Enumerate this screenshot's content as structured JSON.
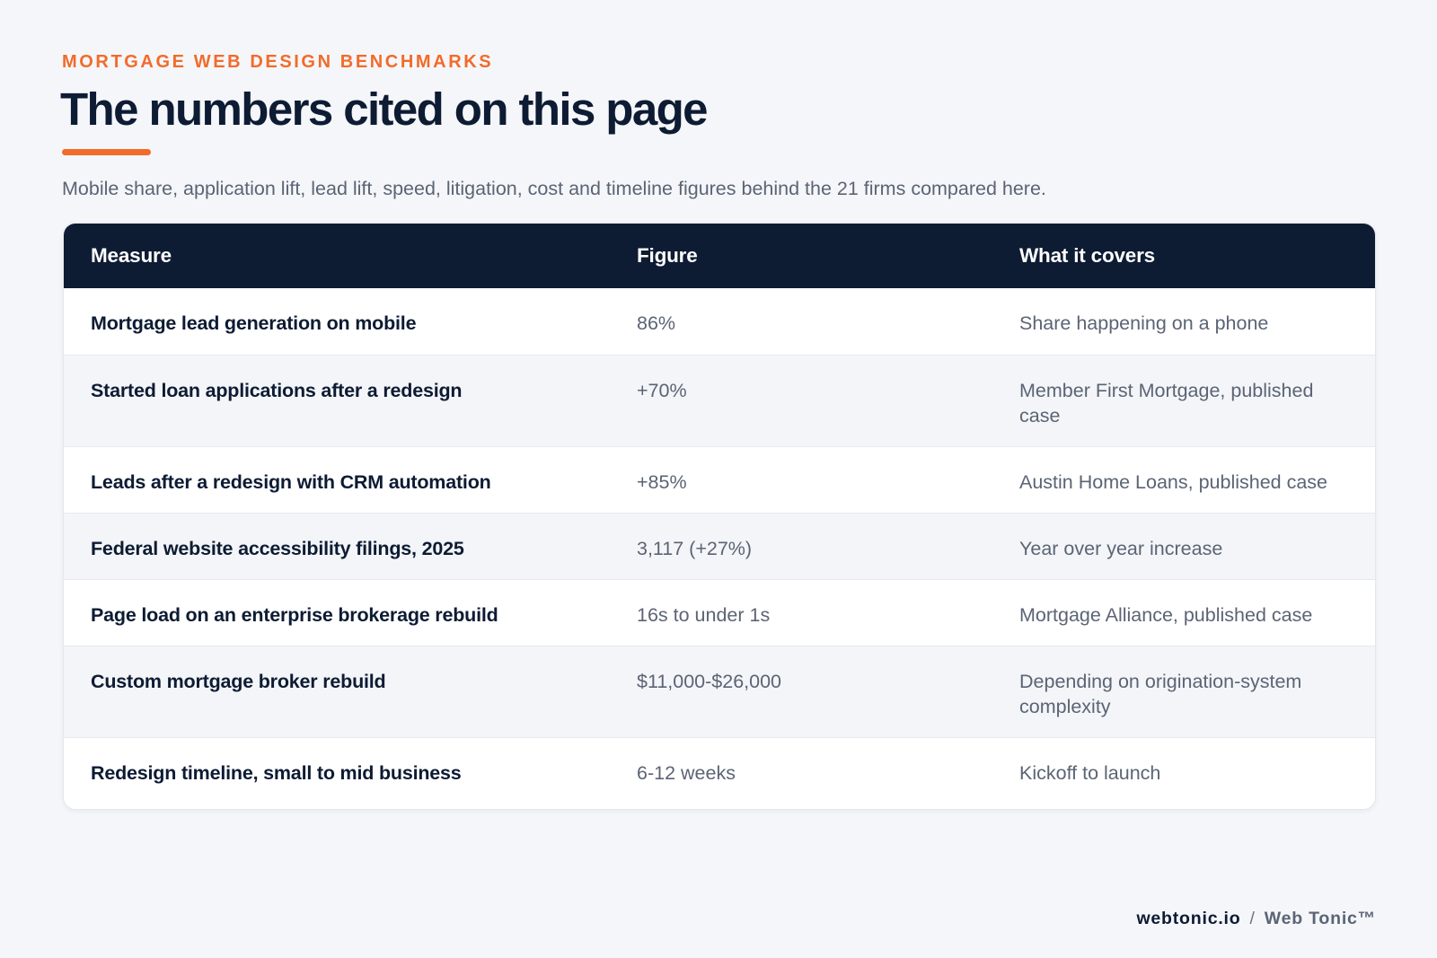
{
  "header": {
    "eyebrow": "MORTGAGE WEB DESIGN BENCHMARKS",
    "title": "The numbers cited on this page",
    "subtitle": "Mobile share, application lift, lead lift, speed, litigation, cost and timeline figures behind the 21 firms compared here."
  },
  "table": {
    "columns": [
      "Measure",
      "Figure",
      "What it covers"
    ],
    "rows": [
      {
        "measure": "Mortgage lead generation on mobile",
        "figure": "86%",
        "covers": "Share happening on a phone"
      },
      {
        "measure": "Started loan applications after a redesign",
        "figure": "+70%",
        "covers": "Member First Mortgage, published case"
      },
      {
        "measure": "Leads after a redesign with CRM automation",
        "figure": "+85%",
        "covers": "Austin Home Loans, published case"
      },
      {
        "measure": "Federal website accessibility filings, 2025",
        "figure": "3,117 (+27%)",
        "covers": "Year over year increase"
      },
      {
        "measure": "Page load on an enterprise brokerage rebuild",
        "figure": "16s to under 1s",
        "covers": "Mortgage Alliance, published case"
      },
      {
        "measure": "Custom mortgage broker rebuild",
        "figure": "$11,000-$26,000",
        "covers": "Depending on origination-system complexity"
      },
      {
        "measure": "Redesign timeline, small to mid business",
        "figure": "6-12 weeks",
        "covers": "Kickoff to launch"
      }
    ]
  },
  "footer": {
    "site": "webtonic.io",
    "separator": "/",
    "brand": "Web Tonic™"
  },
  "colors": {
    "accent": "#f26b2a",
    "navy": "#0d1b33",
    "background": "#f4f6f9",
    "muted_text": "#5b6475"
  }
}
